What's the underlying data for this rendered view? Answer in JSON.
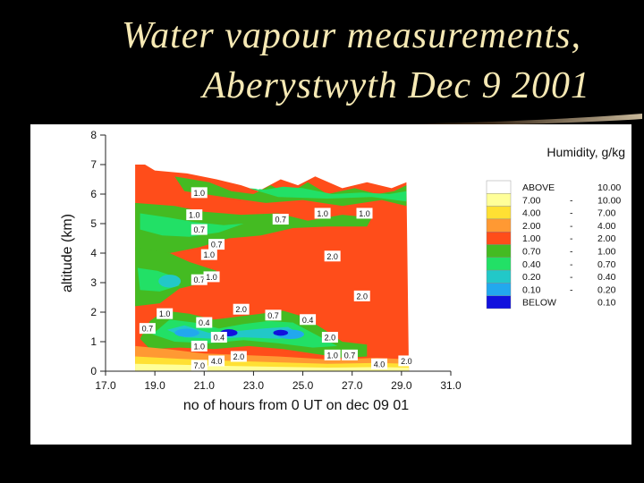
{
  "slide": {
    "title_line1": "Water vapour measurements,",
    "title_line2": "Aberystwyth Dec 9 2001"
  },
  "chart_data": {
    "type": "heatmap",
    "xlabel": "no of hours from 0 UT on dec 09 01",
    "ylabel": "altitude (km)",
    "xlim": [
      17.0,
      31.0
    ],
    "ylim": [
      0,
      8
    ],
    "x_ticks": [
      "17.0",
      "19.0",
      "21.0",
      "23.0",
      "25.0",
      "27.0",
      "29.0",
      "31.0"
    ],
    "y_ticks": [
      "0",
      "1",
      "2",
      "3",
      "4",
      "5",
      "6",
      "7",
      "8"
    ],
    "legend_title": "Humidity, g/kg",
    "legend": [
      {
        "label": "ABOVE",
        "range": "10.00",
        "color": "#ffffff"
      },
      {
        "label": "7.00",
        "range": "10.00",
        "color": "#ffff99"
      },
      {
        "label": "4.00",
        "range": "7.00",
        "color": "#ffe033"
      },
      {
        "label": "2.00",
        "range": "4.00",
        "color": "#ff9933"
      },
      {
        "label": "1.00",
        "range": "2.00",
        "color": "#ff4d1a"
      },
      {
        "label": "0.70",
        "range": "1.00",
        "color": "#44bb22"
      },
      {
        "label": "0.40",
        "range": "0.70",
        "color": "#22e066"
      },
      {
        "label": "0.20",
        "range": "0.40",
        "color": "#22c8c8"
      },
      {
        "label": "0.10",
        "range": "0.20",
        "color": "#22a8ee"
      },
      {
        "label": "BELOW",
        "range": "0.10",
        "color": "#1111dd"
      }
    ],
    "contour_labels": [
      {
        "x": 20.8,
        "y": 6.05,
        "text": "1.0"
      },
      {
        "x": 20.6,
        "y": 5.3,
        "text": "1.0"
      },
      {
        "x": 20.8,
        "y": 4.8,
        "text": "0.7"
      },
      {
        "x": 21.5,
        "y": 4.3,
        "text": "0.7"
      },
      {
        "x": 24.1,
        "y": 5.15,
        "text": "0.7"
      },
      {
        "x": 25.8,
        "y": 5.35,
        "text": "1.0"
      },
      {
        "x": 27.5,
        "y": 5.35,
        "text": "1.0"
      },
      {
        "x": 21.2,
        "y": 3.95,
        "text": "1.0"
      },
      {
        "x": 20.8,
        "y": 3.1,
        "text": "0.7"
      },
      {
        "x": 21.3,
        "y": 3.2,
        "text": "1.0"
      },
      {
        "x": 26.2,
        "y": 3.9,
        "text": "2.0"
      },
      {
        "x": 27.4,
        "y": 2.55,
        "text": "2.0"
      },
      {
        "x": 22.5,
        "y": 2.1,
        "text": "2.0"
      },
      {
        "x": 19.4,
        "y": 1.95,
        "text": "1.0"
      },
      {
        "x": 23.8,
        "y": 1.9,
        "text": "0.7"
      },
      {
        "x": 25.2,
        "y": 1.75,
        "text": "0.4"
      },
      {
        "x": 18.7,
        "y": 1.45,
        "text": "0.7"
      },
      {
        "x": 21.0,
        "y": 1.65,
        "text": "0.4"
      },
      {
        "x": 21.6,
        "y": 1.15,
        "text": "0.4"
      },
      {
        "x": 26.1,
        "y": 1.15,
        "text": "2.0"
      },
      {
        "x": 20.8,
        "y": 0.85,
        "text": "1.0"
      },
      {
        "x": 22.4,
        "y": 0.5,
        "text": "2.0"
      },
      {
        "x": 21.5,
        "y": 0.35,
        "text": "4.0"
      },
      {
        "x": 20.8,
        "y": 0.2,
        "text": "7.0"
      },
      {
        "x": 26.2,
        "y": 0.55,
        "text": "1.0"
      },
      {
        "x": 26.9,
        "y": 0.55,
        "text": "0.7"
      },
      {
        "x": 28.1,
        "y": 0.25,
        "text": "4.0"
      },
      {
        "x": 29.2,
        "y": 0.35,
        "text": "2.0"
      }
    ]
  }
}
